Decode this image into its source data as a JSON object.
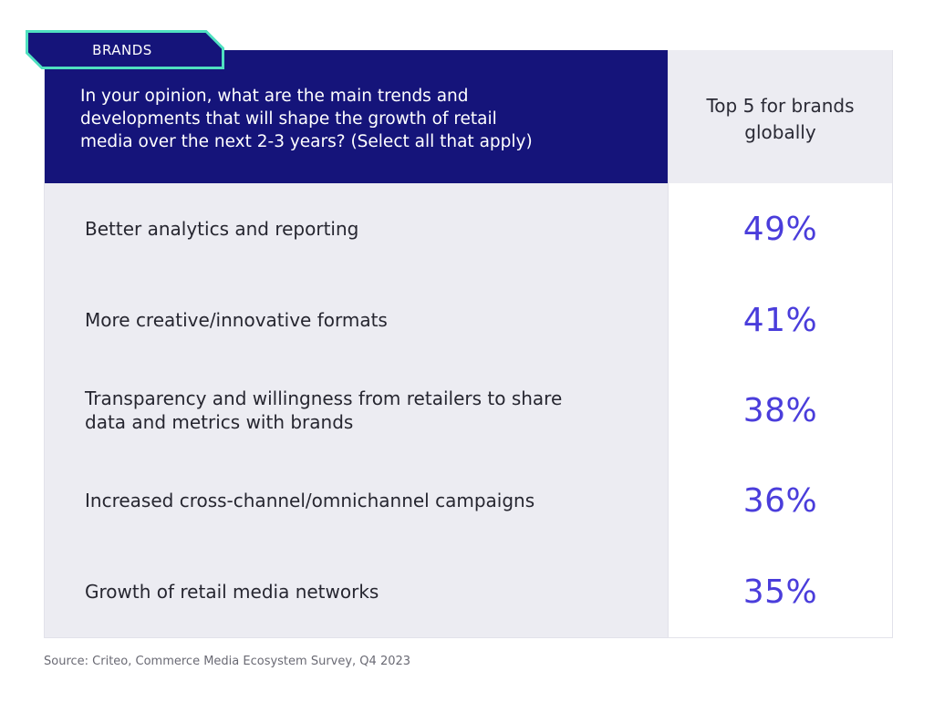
{
  "tag": {
    "label": "BRANDS"
  },
  "table": {
    "question": "In your opinion, what are the main trends and developments that will shape the growth of retail media over the next 2-3 years? (Select all that apply)",
    "question_lines": [
      "In your opinion, what are the main trends and",
      "developments that will shape the growth of retail",
      "media over the next 2-3 years? (Select all that apply)"
    ],
    "column_header_lines": [
      "Top 5 for brands",
      "globally"
    ],
    "rows": [
      {
        "label": "Better analytics and reporting",
        "value": "49%"
      },
      {
        "label": "More creative/innovative formats",
        "value": "41%"
      },
      {
        "label": "Transparency and willingness from retailers to share data and metrics with brands",
        "value": "38%"
      },
      {
        "label": "Increased cross-channel/omnichannel campaigns",
        "value": "36%"
      },
      {
        "label": "Growth of retail media networks",
        "value": "35%"
      }
    ]
  },
  "source": "Source: Criteo, Commerce Media Ecosystem Survey, Q4 2023",
  "colors": {
    "header_bg": "#15147a",
    "tag_outline": "#4fe0c0",
    "value_text": "#4a3ddb",
    "row_bg": "#ececf2"
  }
}
